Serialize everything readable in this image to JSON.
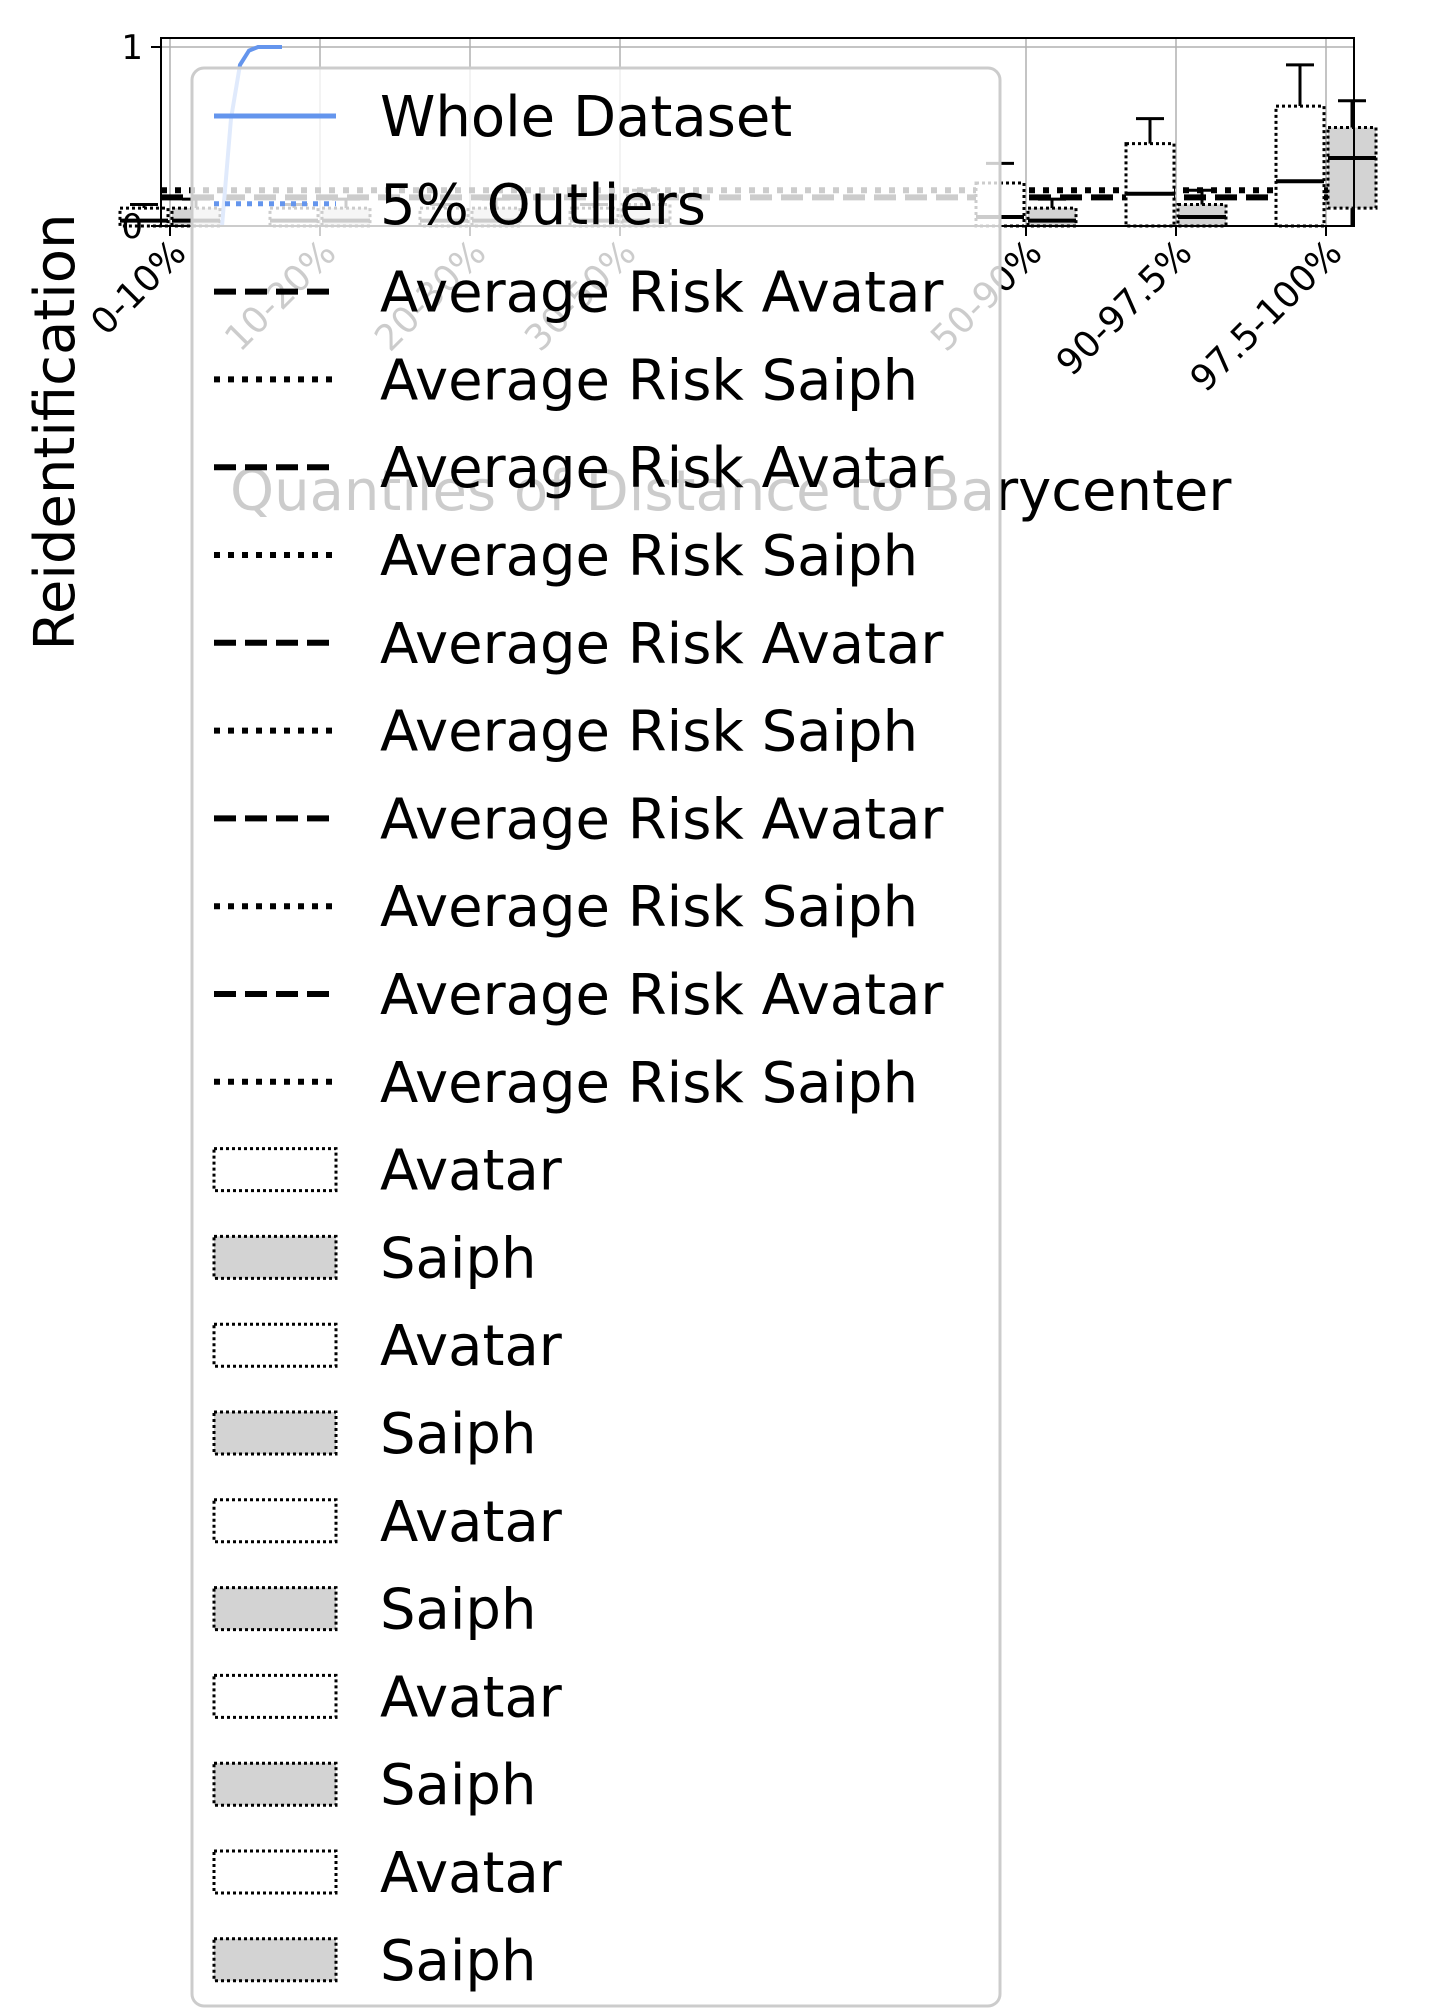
{
  "chart_data": {
    "type": "box",
    "title": "",
    "xlabel": "Quantiles of Distance to Barycenter",
    "ylabel": "Reidentification",
    "ylim": [
      0,
      1
    ],
    "yticks": [
      0,
      1
    ],
    "categories": [
      "0-10%",
      "10-20%",
      "20-30%",
      "30-50%",
      "50-90%",
      "90-97.5%",
      "97.5-100%"
    ],
    "grid": true,
    "legend_position": "overlapping the plot, upper-left",
    "colors": {
      "whole_dataset": "#6495ed",
      "saiph_fill": "#d3d3d3",
      "avatar_fill": "#ffffff",
      "average_risk": "#000000",
      "box_edge": "#000000"
    },
    "series": [
      {
        "name": "Avatar",
        "boxes": [
          {
            "category": "0-10%",
            "q1": 0.0,
            "median": 0.03,
            "q3": 0.1,
            "whisker_low": 0.0,
            "whisker_high": 0.12
          },
          {
            "category": "10-20%",
            "q1": 0.0,
            "median": 0.03,
            "q3": 0.1,
            "whisker_low": 0.0,
            "whisker_high": 0.12
          },
          {
            "category": "20-30%",
            "q1": 0.0,
            "median": 0.03,
            "q3": 0.1,
            "whisker_low": 0.0,
            "whisker_high": 0.12
          },
          {
            "category": "30-50%",
            "q1": 0.0,
            "median": 0.03,
            "q3": 0.1,
            "whisker_low": 0.0,
            "whisker_high": 0.12
          },
          {
            "category": "50-90%",
            "q1": 0.0,
            "median": 0.05,
            "q3": 0.24,
            "whisker_low": 0.0,
            "whisker_high": 0.35
          },
          {
            "category": "90-97.5%",
            "q1": 0.0,
            "median": 0.18,
            "q3": 0.46,
            "whisker_low": 0.0,
            "whisker_high": 0.6
          },
          {
            "category": "97.5-100%",
            "q1": 0.0,
            "median": 0.25,
            "q3": 0.67,
            "whisker_low": 0.0,
            "whisker_high": 0.9
          }
        ]
      },
      {
        "name": "Saiph",
        "boxes": [
          {
            "category": "0-10%",
            "q1": 0.0,
            "median": 0.03,
            "q3": 0.1,
            "whisker_low": 0.0,
            "whisker_high": 0.15
          },
          {
            "category": "10-20%",
            "q1": 0.0,
            "median": 0.03,
            "q3": 0.1,
            "whisker_low": 0.0,
            "whisker_high": 0.15
          },
          {
            "category": "20-30%",
            "q1": 0.0,
            "median": 0.03,
            "q3": 0.1,
            "whisker_low": 0.0,
            "whisker_high": 0.15
          },
          {
            "category": "30-50%",
            "q1": 0.0,
            "median": 0.03,
            "q3": 0.12,
            "whisker_low": 0.0,
            "whisker_high": 0.2
          },
          {
            "category": "50-90%",
            "q1": 0.0,
            "median": 0.03,
            "q3": 0.1,
            "whisker_low": 0.0,
            "whisker_high": 0.15
          },
          {
            "category": "90-97.5%",
            "q1": 0.0,
            "median": 0.05,
            "q3": 0.12,
            "whisker_low": 0.0,
            "whisker_high": 0.2
          },
          {
            "category": "97.5-100%",
            "q1": 0.1,
            "median": 0.38,
            "q3": 0.55,
            "whisker_low": 0.0,
            "whisker_high": 0.7
          }
        ]
      }
    ],
    "average_risk_avatar": 0.16,
    "average_risk_saiph": 0.2,
    "inset": {
      "name": "Whole Dataset",
      "x": [
        0.0,
        0.15,
        0.3,
        0.45,
        0.6,
        1.0
      ],
      "y": [
        0.0,
        0.6,
        0.9,
        0.98,
        1.0,
        1.0
      ]
    },
    "legend": [
      {
        "label": "Whole Dataset",
        "marker": "solid-line-blue"
      },
      {
        "label": "5% Outliers",
        "marker": "dotted-line-blue"
      },
      {
        "label": "Average Risk Avatar",
        "marker": "dashed-line"
      },
      {
        "label": "Average Risk Saiph",
        "marker": "dotted-line"
      },
      {
        "label": "Average Risk Avatar",
        "marker": "dashed-line"
      },
      {
        "label": "Average Risk Saiph",
        "marker": "dotted-line"
      },
      {
        "label": "Average Risk Avatar",
        "marker": "dashed-line"
      },
      {
        "label": "Average Risk Saiph",
        "marker": "dotted-line"
      },
      {
        "label": "Average Risk Avatar",
        "marker": "dashed-line"
      },
      {
        "label": "Average Risk Saiph",
        "marker": "dotted-line"
      },
      {
        "label": "Average Risk Avatar",
        "marker": "dashed-line"
      },
      {
        "label": "Average Risk Saiph",
        "marker": "dotted-line"
      },
      {
        "label": "Avatar",
        "marker": "white-patch"
      },
      {
        "label": "Saiph",
        "marker": "gray-patch"
      },
      {
        "label": "Avatar",
        "marker": "white-patch"
      },
      {
        "label": "Saiph",
        "marker": "gray-patch"
      },
      {
        "label": "Avatar",
        "marker": "white-patch"
      },
      {
        "label": "Saiph",
        "marker": "gray-patch"
      },
      {
        "label": "Avatar",
        "marker": "white-patch"
      },
      {
        "label": "Saiph",
        "marker": "gray-patch"
      },
      {
        "label": "Avatar",
        "marker": "white-patch"
      },
      {
        "label": "Saiph",
        "marker": "gray-patch"
      }
    ]
  }
}
